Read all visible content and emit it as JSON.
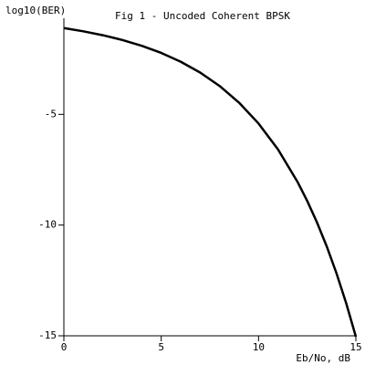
{
  "chart_data": {
    "type": "line",
    "title": "Fig 1 - Uncoded Coherent BPSK",
    "y_label": "log10(BER)",
    "x_label": "Eb/No, dB",
    "x": [
      0,
      1,
      2,
      3,
      4,
      5,
      6,
      7,
      8,
      9,
      10,
      11,
      12,
      12.5,
      13,
      13.5,
      14,
      14.5,
      15
    ],
    "series": [
      {
        "color": "#000000",
        "values": [
          -1.104,
          -1.25,
          -1.426,
          -1.641,
          -1.903,
          -2.225,
          -2.622,
          -3.112,
          -3.719,
          -4.473,
          -5.412,
          -6.583,
          -8.045,
          -8.909,
          -9.875,
          -10.956,
          -12.167,
          -13.522,
          -15.04
        ]
      }
    ],
    "xlim": [
      0,
      15
    ],
    "ylim": [
      -15,
      -0.66
    ],
    "xticks": [
      0,
      5,
      10,
      15
    ],
    "yticks": [
      -15,
      -10,
      -5
    ],
    "grid": false
  }
}
